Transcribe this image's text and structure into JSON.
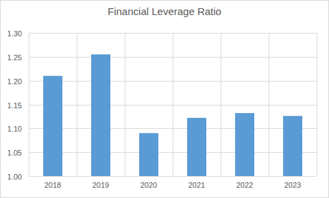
{
  "chart_data": {
    "type": "bar",
    "title": "Financial Leverage Ratio",
    "categories": [
      "2018",
      "2019",
      "2020",
      "2021",
      "2022",
      "2023"
    ],
    "values": [
      1.21,
      1.255,
      1.09,
      1.122,
      1.132,
      1.126
    ],
    "color": "#5b9bd5",
    "ylim": [
      1,
      1.3
    ],
    "yticks": [
      {
        "value": 1,
        "label": "1.00"
      },
      1.05,
      {
        "value": 1.1,
        "label": "1.10"
      },
      1.15,
      {
        "value": 1.2,
        "label": "1.20"
      },
      1.25,
      {
        "value": 1.3,
        "label": "1.30"
      }
    ],
    "grid": true
  }
}
